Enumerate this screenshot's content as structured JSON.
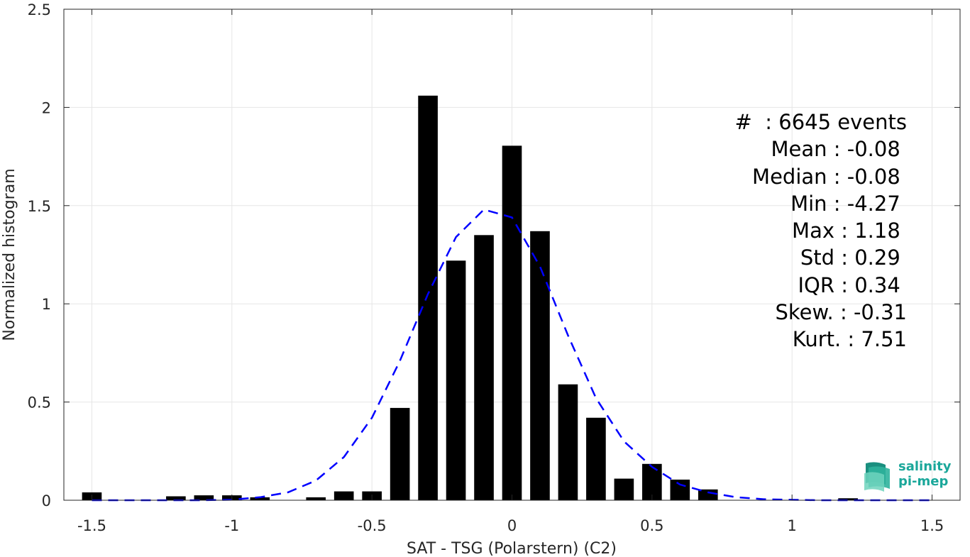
{
  "chart_data": {
    "type": "bar",
    "xlabel": "SAT - TSG (Polarstern) (C2)",
    "ylabel": "Normalized histogram",
    "xlim": [
      -1.6,
      1.6
    ],
    "ylim": [
      0,
      2.5
    ],
    "x_ticks": [
      "-1.5",
      "-1",
      "-0.5",
      "0",
      "0.5",
      "1",
      "1.5"
    ],
    "x_tick_values": [
      -1.5,
      -1,
      -0.5,
      0,
      0.5,
      1,
      1.5
    ],
    "y_ticks": [
      "0",
      "0.5",
      "1",
      "1.5",
      "2",
      "2.5"
    ],
    "y_tick_values": [
      0,
      0.5,
      1,
      1.5,
      2,
      2.5
    ],
    "grid": true,
    "bars": {
      "x": [
        -1.5,
        -1.2,
        -1.1,
        -1.0,
        -0.9,
        -0.7,
        -0.6,
        -0.5,
        -0.4,
        -0.3,
        -0.2,
        -0.1,
        0.0,
        0.1,
        0.2,
        0.3,
        0.4,
        0.5,
        0.6,
        0.7,
        1.2
      ],
      "values": [
        0.04,
        0.02,
        0.025,
        0.025,
        0.015,
        0.015,
        0.045,
        0.045,
        0.47,
        2.06,
        1.22,
        1.35,
        1.805,
        1.37,
        0.59,
        0.42,
        0.11,
        0.185,
        0.105,
        0.055,
        0.01
      ],
      "color": "#000000"
    },
    "series": [
      {
        "type": "line",
        "style": "dashed",
        "color": "#0000ff",
        "x": [
          -1.5,
          -1.4,
          -1.3,
          -1.2,
          -1.1,
          -1.0,
          -0.9,
          -0.8,
          -0.7,
          -0.6,
          -0.5,
          -0.4,
          -0.3,
          -0.2,
          -0.1,
          0.0,
          0.1,
          0.2,
          0.3,
          0.4,
          0.5,
          0.6,
          0.7,
          0.8,
          0.9,
          1.0,
          1.1,
          1.2,
          1.3,
          1.4,
          1.5
        ],
        "values": [
          0.0,
          0.0,
          0.0,
          0.0,
          0.0,
          0.003,
          0.015,
          0.04,
          0.1,
          0.22,
          0.42,
          0.71,
          1.05,
          1.34,
          1.48,
          1.44,
          1.19,
          0.84,
          0.52,
          0.3,
          0.17,
          0.08,
          0.04,
          0.015,
          0.005,
          0.002,
          0.0,
          0.0,
          0.0,
          0.0,
          0.0
        ]
      }
    ]
  },
  "stats": [
    "#  : 6645 events",
    "Mean : -0.08 ",
    "Median : -0.08 ",
    "Min : -4.27 ",
    "Max : 1.18 ",
    "Std : 0.29 ",
    "IQR : 0.34 ",
    "Skew. : -0.31",
    "Kurt. : 7.51"
  ],
  "logo": {
    "line1": "salinity",
    "line2": "pi-mep"
  }
}
